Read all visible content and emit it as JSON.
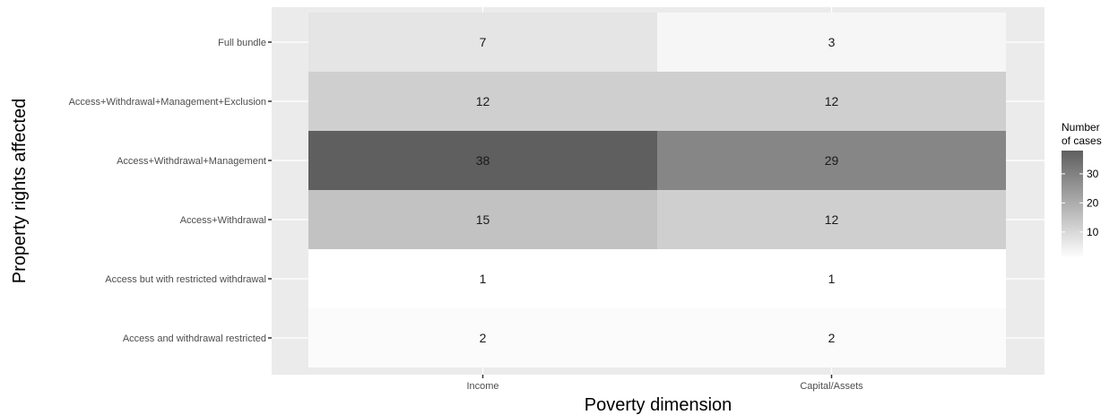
{
  "chart_data": {
    "type": "heatmap",
    "xlabel": "Poverty dimension",
    "ylabel": "Property rights affected",
    "x_categories": [
      "Income",
      "Capital/Assets"
    ],
    "y_categories": [
      "Full bundle",
      "Access+Withdrawal+Management+Exclusion",
      "Access+Withdrawal+Management",
      "Access+Withdrawal",
      "Access but with restricted withdrawal",
      "Access and withdrawal restricted"
    ],
    "values": [
      [
        7,
        3
      ],
      [
        12,
        12
      ],
      [
        38,
        29
      ],
      [
        15,
        12
      ],
      [
        1,
        1
      ],
      [
        2,
        2
      ]
    ],
    "legend": {
      "title_lines": [
        "Number",
        "of cases"
      ],
      "ticks": [
        10,
        20,
        30
      ],
      "range": [
        1,
        38
      ],
      "color_low": "#ffffff",
      "color_high": "#5f5f5f",
      "placement": "right"
    },
    "panel_background": "#ebebeb",
    "grid": true
  }
}
